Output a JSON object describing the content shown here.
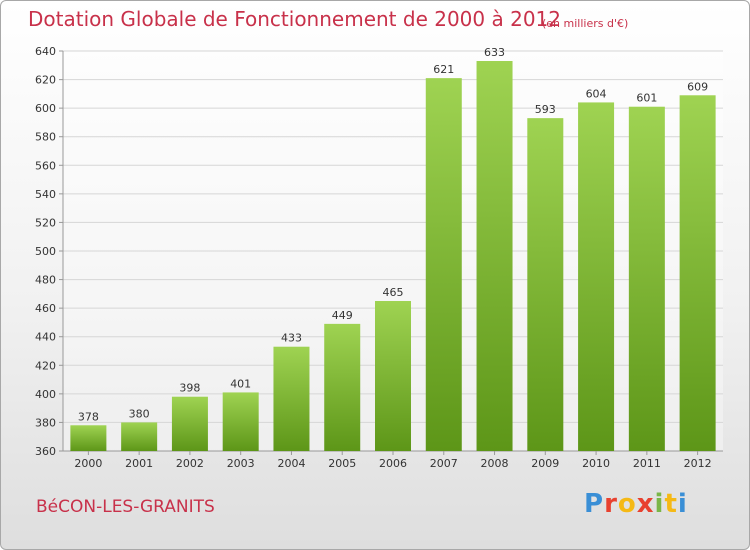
{
  "header": {
    "title": "Dotation Globale de Fonctionnement de 2000 à 2012",
    "unit": "(en milliers d'€)"
  },
  "footer": {
    "commune": "BéCON-LES-GRANITS",
    "logo_letters": [
      "P",
      "r",
      "o",
      "x",
      "i",
      "t",
      "i"
    ],
    "logo_colors": [
      "#3a8fd6",
      "#e8412f",
      "#f5b915",
      "#e8412f",
      "#7ab648",
      "#f5b915",
      "#3a8fd6"
    ]
  },
  "colors": {
    "title": "#c8314a",
    "bar_top": "#9fd352",
    "bar_bottom": "#5d9618",
    "grid": "#d6d6d6",
    "text": "#333333"
  },
  "chart_data": {
    "type": "bar",
    "title": "Dotation Globale de Fonctionnement de 2000 à 2012",
    "subtitle": "(en milliers d'€)",
    "xlabel": "",
    "ylabel": "",
    "categories": [
      "2000",
      "2001",
      "2002",
      "2003",
      "2004",
      "2005",
      "2006",
      "2007",
      "2008",
      "2009",
      "2010",
      "2011",
      "2012"
    ],
    "values": [
      378,
      380,
      398,
      401,
      433,
      449,
      465,
      621,
      633,
      593,
      604,
      601,
      609
    ],
    "ylim": [
      360,
      640
    ],
    "yticks": [
      360,
      380,
      400,
      420,
      440,
      460,
      480,
      500,
      520,
      540,
      560,
      580,
      600,
      620,
      640
    ],
    "grid": true,
    "legend": "none"
  }
}
